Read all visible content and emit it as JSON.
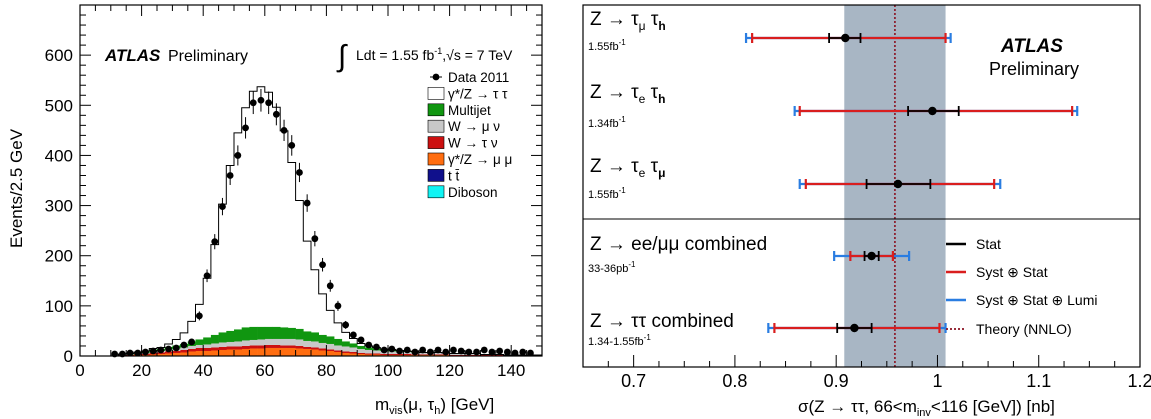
{
  "chart_data": [
    {
      "type": "histogram",
      "ylabel": "Events/2.5 GeV",
      "xlabel_main": "m",
      "xlabel_sub": "vis",
      "xlabel_args": "(μ, τ",
      "xlabel_args_sub": "h",
      "xlabel_unit": ")  [GeV]",
      "xlim": [
        0,
        150
      ],
      "ylim": [
        0,
        700
      ],
      "x_ticks": [
        0,
        20,
        40,
        60,
        80,
        100,
        120,
        140
      ],
      "y_ticks": [
        0,
        100,
        200,
        300,
        400,
        500,
        600
      ],
      "atlas": "ATLAS",
      "preliminary": "Preliminary",
      "lumi": {
        "integral": "∫",
        "text_before": "Ldt = 1.55 fb",
        "sup": "-1",
        "text_after": ",√s = 7 TeV"
      },
      "legend": {
        "placement": "top-right",
        "entries": [
          {
            "label": "Data 2011",
            "kind": "data"
          },
          {
            "label": "γ*/Z → τ τ",
            "kind": "box",
            "color": "#ffffff"
          },
          {
            "label": "Multijet",
            "kind": "box",
            "color": "#109610"
          },
          {
            "label": "W → μ ν",
            "kind": "box",
            "color": "#c8c8c8"
          },
          {
            "label": "W → τ ν",
            "kind": "box",
            "color": "#cc1010"
          },
          {
            "label": "γ*/Z → μ μ",
            "kind": "box",
            "color": "#ff6d10"
          },
          {
            "label": "t t̄",
            "kind": "box",
            "color": "#10108c"
          },
          {
            "label": "Diboson",
            "kind": "box",
            "color": "#10f4f4"
          }
        ]
      },
      "bin_width": 2.5,
      "bin_lows": [
        0,
        2.5,
        5,
        7.5,
        10,
        12.5,
        15,
        17.5,
        20,
        22.5,
        25,
        27.5,
        30,
        32.5,
        35,
        37.5,
        40,
        42.5,
        45,
        47.5,
        50,
        52.5,
        55,
        57.5,
        60,
        62.5,
        65,
        67.5,
        70,
        72.5,
        75,
        77.5,
        80,
        82.5,
        85,
        87.5,
        90,
        92.5,
        95,
        97.5,
        100,
        102.5,
        105,
        107.5,
        110,
        112.5,
        115,
        117.5,
        120,
        122.5,
        125,
        127.5,
        130,
        132.5,
        135,
        137.5,
        140,
        142.5,
        145,
        147.5
      ],
      "stacks": {
        "Diboson": [
          0,
          0,
          0,
          0,
          0,
          0,
          0,
          0,
          0,
          0,
          0,
          0,
          0,
          0,
          0,
          0,
          0,
          0,
          0,
          0,
          0,
          0,
          0,
          0,
          0,
          0,
          0,
          0,
          0,
          0,
          0,
          0,
          0,
          0,
          0,
          0,
          0,
          0,
          0,
          0,
          0,
          0,
          0,
          0,
          0,
          0,
          0,
          0,
          0,
          0,
          0,
          0,
          0,
          0,
          0,
          0,
          0,
          0,
          0,
          0
        ],
        "ttbar": [
          0,
          0,
          0,
          0,
          0,
          0,
          0,
          0,
          0,
          0,
          0,
          0,
          0,
          0,
          1,
          1,
          1,
          1,
          1,
          1,
          1,
          1,
          1,
          1,
          1,
          1,
          1,
          1,
          1,
          1,
          1,
          1,
          1,
          1,
          1,
          1,
          1,
          1,
          1,
          1,
          1,
          1,
          1,
          1,
          1,
          1,
          1,
          1,
          1,
          1,
          1,
          1,
          1,
          1,
          1,
          1,
          1,
          1,
          1,
          1
        ],
        "Zmumu": [
          0,
          0,
          0,
          0,
          0,
          1,
          1,
          2,
          2,
          3,
          4,
          5,
          6,
          7,
          8,
          9,
          9,
          10,
          11,
          12,
          12,
          13,
          14,
          14,
          15,
          15,
          15,
          15,
          14,
          13,
          12,
          10,
          9,
          7,
          5,
          4,
          3,
          2,
          2,
          1,
          1,
          1,
          1,
          1,
          1,
          1,
          1,
          1,
          0,
          0,
          0,
          0,
          0,
          0,
          0,
          0,
          0,
          0,
          0,
          0
        ],
        "Wtaunu": [
          0,
          0,
          0,
          0,
          0,
          1,
          1,
          2,
          2,
          3,
          3,
          4,
          4,
          5,
          5,
          6,
          6,
          6,
          6,
          6,
          6,
          6,
          6,
          6,
          6,
          6,
          5,
          5,
          5,
          4,
          4,
          4,
          3,
          3,
          3,
          3,
          2,
          2,
          2,
          2,
          2,
          2,
          2,
          1,
          1,
          1,
          1,
          1,
          1,
          1,
          1,
          1,
          1,
          1,
          1,
          0,
          0,
          0,
          0,
          0
        ],
        "Wmunu": [
          0,
          0,
          0,
          0,
          0,
          1,
          1,
          2,
          2,
          3,
          3,
          4,
          5,
          5,
          6,
          6,
          7,
          8,
          9,
          9,
          10,
          11,
          11,
          12,
          12,
          12,
          13,
          13,
          13,
          12,
          12,
          11,
          11,
          10,
          10,
          9,
          8,
          7,
          6,
          6,
          5,
          5,
          4,
          4,
          3,
          3,
          3,
          2,
          2,
          2,
          2,
          2,
          1,
          1,
          1,
          1,
          1,
          1,
          1,
          1
        ],
        "Multijet": [
          0,
          0,
          0,
          0,
          0,
          1,
          2,
          2,
          3,
          4,
          4,
          5,
          6,
          7,
          9,
          11,
          14,
          17,
          20,
          22,
          24,
          26,
          26,
          25,
          24,
          24,
          23,
          22,
          21,
          19,
          18,
          16,
          15,
          13,
          10,
          8,
          6,
          5,
          4,
          3,
          3,
          2,
          2,
          2,
          1,
          1,
          1,
          1,
          1,
          1,
          1,
          1,
          0,
          0,
          0,
          0,
          0,
          0,
          0,
          0
        ],
        "Ztautau": [
          0,
          0,
          0,
          0,
          0,
          0,
          0,
          0,
          1,
          2,
          3,
          6,
          12,
          22,
          40,
          70,
          118,
          180,
          256,
          330,
          392,
          438,
          470,
          479,
          468,
          438,
          392,
          330,
          256,
          180,
          125,
          82,
          52,
          32,
          18,
          10,
          5,
          3,
          2,
          1,
          1,
          0,
          0,
          0,
          0,
          0,
          0,
          0,
          0,
          0,
          0,
          0,
          0,
          0,
          0,
          0,
          0,
          0,
          0,
          0
        ]
      },
      "data_points": {
        "x": [
          11.25,
          13.75,
          16.25,
          18.75,
          21.25,
          23.75,
          26.25,
          28.75,
          31.25,
          33.75,
          36.25,
          38.75,
          41.25,
          43.75,
          46.25,
          48.75,
          51.25,
          53.75,
          56.25,
          58.75,
          61.25,
          63.75,
          66.25,
          68.75,
          71.25,
          73.75,
          76.25,
          78.75,
          81.25,
          83.75,
          86.25,
          88.75,
          91.25,
          93.75,
          96.25,
          98.75,
          101.25,
          103.75,
          106.25,
          108.75,
          111.25,
          113.75,
          116.25,
          118.75,
          121.25,
          123.75,
          126.25,
          128.75,
          131.25,
          133.75,
          136.25,
          138.75,
          141.25,
          143.75,
          146.25
        ],
        "y": [
          4,
          4,
          6,
          6,
          8,
          10,
          12,
          14,
          16,
          22,
          28,
          80,
          160,
          228,
          298,
          360,
          400,
          455,
          505,
          510,
          505,
          482,
          450,
          420,
          366,
          305,
          234,
          182,
          140,
          100,
          62,
          42,
          32,
          22,
          18,
          12,
          14,
          10,
          12,
          8,
          12,
          8,
          12,
          8,
          12,
          10,
          8,
          8,
          12,
          8,
          10,
          8,
          6,
          8,
          6
        ]
      }
    },
    {
      "type": "forest",
      "xlabel": "σ(Z → ττ, 66<m",
      "xlabel_sub": "inv",
      "xlabel_after": "<116 [GeV]) [nb]",
      "xlim": [
        0.65,
        1.2
      ],
      "x_ticks": [
        0.7,
        0.8,
        0.9,
        1.0,
        1.1,
        1.2
      ],
      "x_tick_labels": [
        "0.7",
        "0.8",
        "0.9",
        "1",
        "1.1",
        "1.2"
      ],
      "theory": {
        "center": 0.958,
        "band": [
          0.908,
          1.008
        ]
      },
      "atlas": "ATLAS",
      "preliminary": "Preliminary",
      "rows": [
        {
          "label": "Z → τ",
          "sub1": "μ",
          "mid": " τ",
          "sub2": "h",
          "lumi": "1.55fb",
          "lumi_sup": "-1",
          "value": 0.909,
          "stat": [
            0.893,
            0.924
          ],
          "syst": [
            0.817,
            1.008
          ],
          "lumi_err": [
            0.811,
            1.013
          ]
        },
        {
          "label": "Z → τ",
          "sub1": "e",
          "mid": " τ",
          "sub2": "h",
          "lumi": "1.34fb",
          "lumi_sup": "-1",
          "value": 0.995,
          "stat": [
            0.971,
            1.021
          ],
          "syst": [
            0.864,
            1.133
          ],
          "lumi_err": [
            0.859,
            1.138
          ]
        },
        {
          "label": "Z → τ",
          "sub1": "e",
          "mid": " τ",
          "sub2": "μ",
          "lumi": "1.55fb",
          "lumi_sup": "-1",
          "value": 0.961,
          "stat": [
            0.93,
            0.993
          ],
          "syst": [
            0.87,
            1.056
          ],
          "lumi_err": [
            0.864,
            1.062
          ]
        },
        {
          "label": "Z → ee/μμ combined",
          "sub1": "",
          "mid": "",
          "sub2": "",
          "lumi": "33-36pb",
          "lumi_sup": "-1",
          "value": 0.935,
          "stat": [
            0.928,
            0.942
          ],
          "syst": [
            0.914,
            0.956
          ],
          "lumi_err": [
            0.898,
            0.972
          ]
        },
        {
          "label": "Z → ττ combined",
          "sub1": "",
          "mid": "",
          "sub2": "",
          "lumi": "1.34-1.55fb",
          "lumi_sup": "-1",
          "value": 0.918,
          "stat": [
            0.901,
            0.935
          ],
          "syst": [
            0.839,
            1.002
          ],
          "lumi_err": [
            0.833,
            1.008
          ]
        }
      ],
      "legend": {
        "placement": "bottom-right",
        "entries": [
          {
            "label": "Stat",
            "color": "#000000",
            "style": "solid"
          },
          {
            "label": "Syst ⊕ Stat",
            "color": "#d91e1e",
            "style": "solid"
          },
          {
            "label": "Syst ⊕ Stat ⊕ Lumi",
            "color": "#2a7de1",
            "style": "solid"
          },
          {
            "label": "Theory (NNLO)",
            "color": "#8b1020",
            "style": "dotted"
          }
        ]
      },
      "band_color": "#a8b6c4",
      "stat_color": "#000000",
      "syst_color": "#d91e1e",
      "lumi_color": "#2a7de1",
      "theory_color": "#8b1020"
    }
  ]
}
